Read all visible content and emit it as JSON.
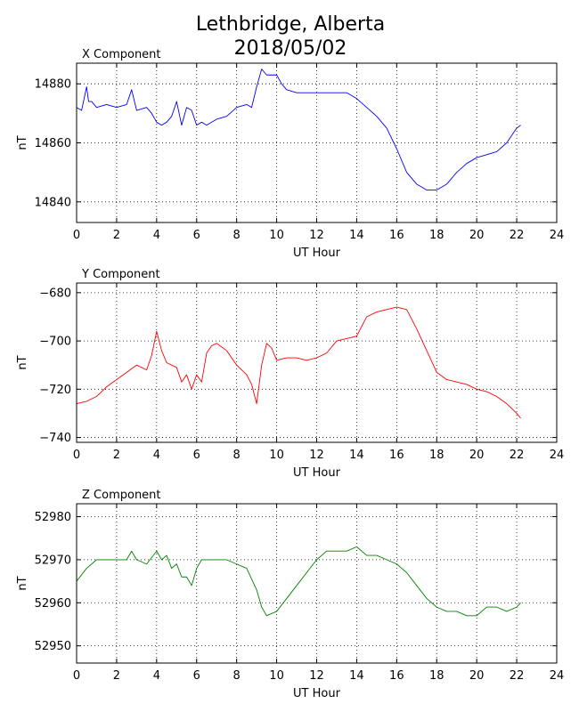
{
  "figure": {
    "title_line1": "Lethbridge, Alberta",
    "title_line2": "2018/05/02"
  },
  "chart_data": [
    {
      "type": "line",
      "title": "X Component",
      "xlabel": "UT Hour",
      "ylabel": "nT",
      "xlim": [
        0,
        24
      ],
      "ylim": [
        14833,
        14887
      ],
      "xticks": [
        0,
        2,
        4,
        6,
        8,
        10,
        12,
        14,
        16,
        18,
        20,
        22,
        24
      ],
      "yticks": [
        14840,
        14860,
        14880
      ],
      "grid": true,
      "color": "#0000ff",
      "series": [
        {
          "x": [
            0,
            0.25,
            0.5,
            0.6,
            0.75,
            1.0,
            1.5,
            2.0,
            2.5,
            2.75,
            3.0,
            3.5,
            3.75,
            4.0,
            4.25,
            4.5,
            4.75,
            5.0,
            5.25,
            5.5,
            5.75,
            6.0,
            6.25,
            6.5,
            7.0,
            7.5,
            8.0,
            8.5,
            8.75,
            9.0,
            9.25,
            9.5,
            9.75,
            10.0,
            10.25,
            10.5,
            11.0,
            11.5,
            12.0,
            12.5,
            13.0,
            13.5,
            14.0,
            14.5,
            15.0,
            15.5,
            16.0,
            16.5,
            17.0,
            17.5,
            18.0,
            18.5,
            19.0,
            19.5,
            20.0,
            20.5,
            21.0,
            21.5,
            22.0,
            22.2
          ],
          "y": [
            14872,
            14871,
            14879,
            14874,
            14874,
            14872,
            14873,
            14872,
            14873,
            14878,
            14871,
            14872,
            14870,
            14867,
            14866,
            14867,
            14869,
            14874,
            14866,
            14872,
            14871,
            14866,
            14867,
            14866,
            14868,
            14869,
            14872,
            14873,
            14872,
            14879,
            14885,
            14883,
            14883,
            14883,
            14880,
            14878,
            14877,
            14877,
            14877,
            14877,
            14877,
            14877,
            14875,
            14872,
            14869,
            14865,
            14858,
            14850,
            14846,
            14844,
            14844,
            14846,
            14850,
            14853,
            14855,
            14856,
            14857,
            14860,
            14865,
            14866
          ]
        }
      ]
    },
    {
      "type": "line",
      "title": "Y Component",
      "xlabel": "UT Hour",
      "ylabel": "nT",
      "xlim": [
        0,
        24
      ],
      "ylim": [
        -742,
        -676
      ],
      "xticks": [
        0,
        2,
        4,
        6,
        8,
        10,
        12,
        14,
        16,
        18,
        20,
        22,
        24
      ],
      "yticks": [
        -740,
        -720,
        -700,
        -680
      ],
      "grid": true,
      "color": "#ff0000",
      "series": [
        {
          "x": [
            0,
            0.5,
            1.0,
            1.5,
            2.0,
            2.5,
            3.0,
            3.5,
            3.75,
            4.0,
            4.25,
            4.5,
            5.0,
            5.25,
            5.5,
            5.75,
            6.0,
            6.25,
            6.5,
            6.75,
            7.0,
            7.5,
            8.0,
            8.5,
            8.75,
            9.0,
            9.25,
            9.5,
            9.75,
            10.0,
            10.5,
            11.0,
            11.5,
            12.0,
            12.5,
            13.0,
            13.5,
            14.0,
            14.5,
            15.0,
            15.5,
            16.0,
            16.5,
            17.0,
            17.5,
            18.0,
            18.5,
            19.0,
            19.5,
            20.0,
            20.5,
            21.0,
            21.5,
            22.0,
            22.2
          ],
          "y": [
            -726,
            -725,
            -723,
            -719,
            -716,
            -713,
            -710,
            -712,
            -706,
            -696,
            -704,
            -709,
            -711,
            -717,
            -714,
            -720,
            -714,
            -717,
            -705,
            -702,
            -701,
            -704,
            -710,
            -714,
            -718,
            -726,
            -710,
            -701,
            -703,
            -708,
            -707,
            -707,
            -708,
            -707,
            -705,
            -700,
            -699,
            -698,
            -690,
            -688,
            -687,
            -686,
            -687,
            -695,
            -704,
            -713,
            -716,
            -717,
            -718,
            -720,
            -721,
            -723,
            -726,
            -730,
            -732
          ]
        }
      ]
    },
    {
      "type": "line",
      "title": "Z Component",
      "xlabel": "UT Hour",
      "ylabel": "nT",
      "xlim": [
        0,
        24
      ],
      "ylim": [
        52946,
        52983
      ],
      "xticks": [
        0,
        2,
        4,
        6,
        8,
        10,
        12,
        14,
        16,
        18,
        20,
        22,
        24
      ],
      "yticks": [
        52950,
        52960,
        52970,
        52980
      ],
      "grid": true,
      "color": "#008000",
      "series": [
        {
          "x": [
            0,
            0.5,
            1.0,
            1.5,
            2.0,
            2.5,
            2.75,
            3.0,
            3.5,
            4.0,
            4.25,
            4.5,
            4.75,
            5.0,
            5.25,
            5.5,
            5.75,
            6.0,
            6.25,
            6.5,
            7.0,
            7.5,
            8.0,
            8.5,
            9.0,
            9.25,
            9.5,
            10.0,
            10.5,
            11.0,
            11.5,
            12.0,
            12.5,
            13.0,
            13.5,
            14.0,
            14.5,
            15.0,
            15.5,
            16.0,
            16.5,
            17.0,
            17.5,
            18.0,
            18.5,
            19.0,
            19.5,
            20.0,
            20.5,
            21.0,
            21.5,
            22.0,
            22.2
          ],
          "y": [
            52965,
            52968,
            52970,
            52970,
            52970,
            52970,
            52972,
            52970,
            52969,
            52972,
            52970,
            52971,
            52968,
            52969,
            52966,
            52966,
            52964,
            52968,
            52970,
            52970,
            52970,
            52970,
            52969,
            52968,
            52963,
            52959,
            52957,
            52958,
            52961,
            52964,
            52967,
            52970,
            52972,
            52972,
            52972,
            52973,
            52971,
            52971,
            52970,
            52969,
            52967,
            52964,
            52961,
            52959,
            52958,
            52958,
            52957,
            52957,
            52959,
            52959,
            52958,
            52959,
            52960
          ]
        }
      ]
    }
  ]
}
